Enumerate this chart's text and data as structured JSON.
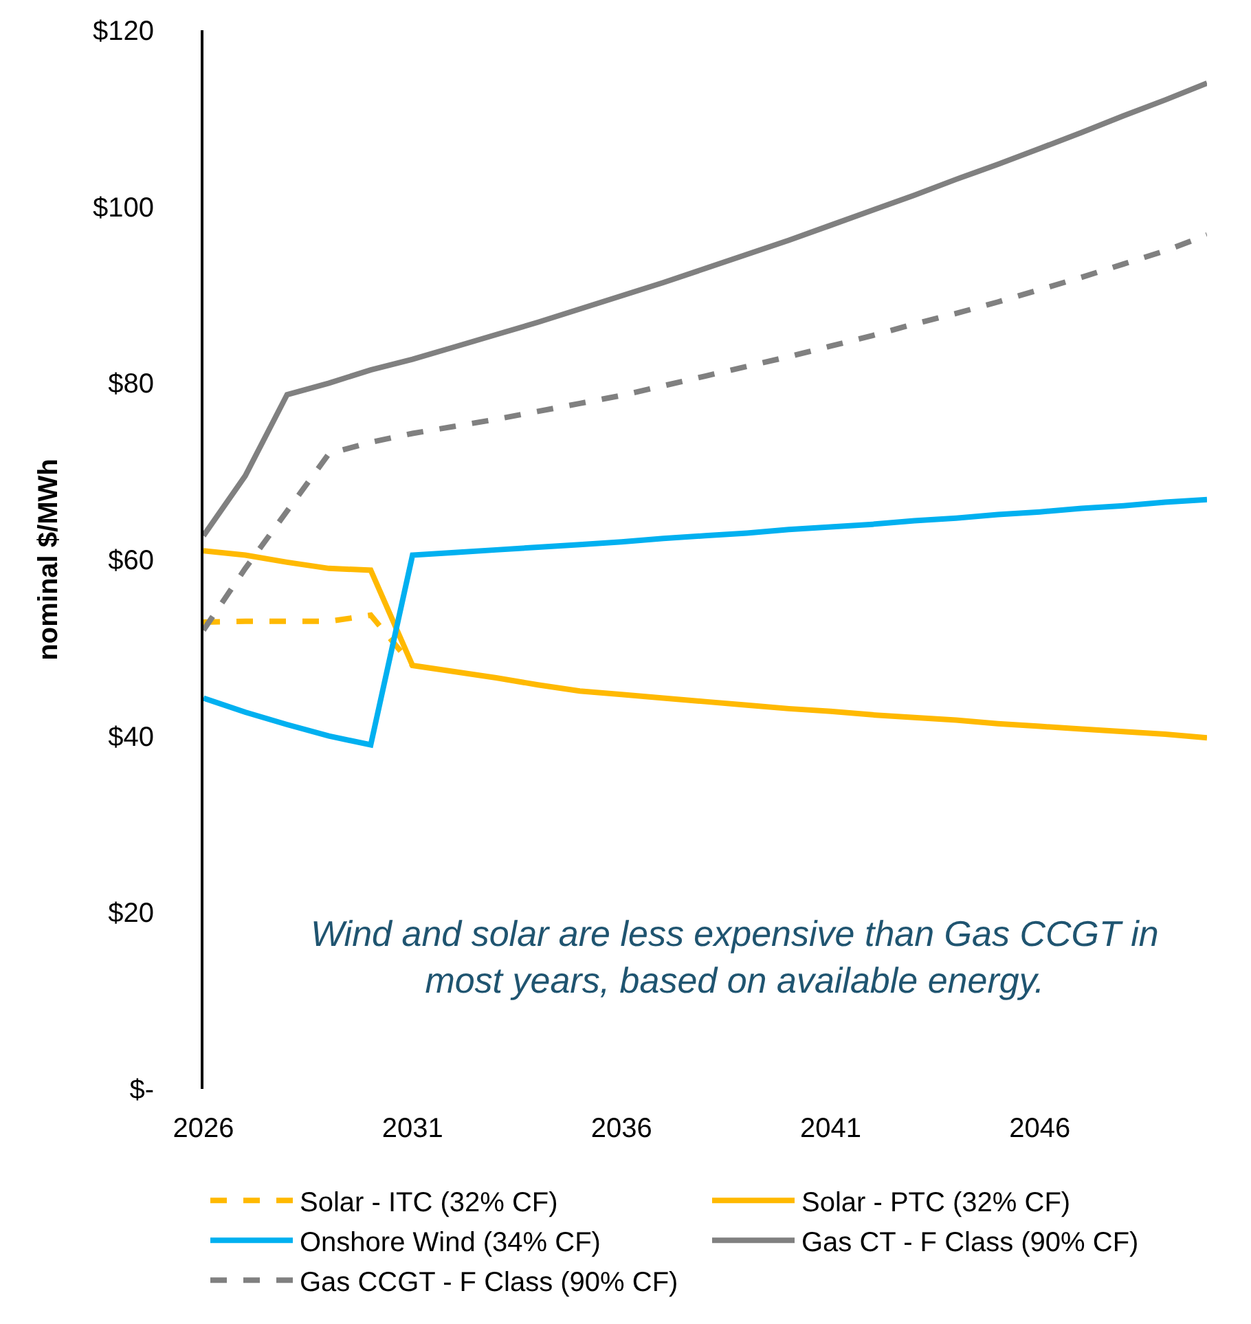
{
  "chart_data": {
    "type": "line",
    "ylabel": "nominal $/MWh",
    "categories": [
      "2026",
      null,
      null,
      null,
      null,
      "2031",
      null,
      null,
      null,
      null,
      "2036",
      null,
      null,
      null,
      null,
      "2041",
      null,
      null,
      null,
      null,
      "2046",
      null,
      null,
      null,
      null
    ],
    "series": [
      {
        "name": "Solar - ITC (32% CF)",
        "color": "#ffb900",
        "line_style": "dashed",
        "values": [
          52.9,
          53,
          53,
          53,
          53.7,
          48,
          null,
          null,
          null,
          null,
          null,
          null,
          null,
          null,
          null,
          null,
          null,
          null,
          null,
          null,
          null,
          null,
          null,
          null,
          null
        ]
      },
      {
        "name": "Solar - PTC (32% CF)",
        "color": "#ffb900",
        "line_style": "solid",
        "values": [
          61,
          60.5,
          59.7,
          59,
          58.8,
          48,
          47.3,
          46.6,
          45.8,
          45.1,
          44.7,
          44.3,
          43.9,
          43.5,
          43.1,
          42.8,
          42.4,
          42.1,
          41.8,
          41.4,
          41.1,
          40.8,
          40.5,
          40.2,
          39.8
        ]
      },
      {
        "name": "Onshore Wind (34% CF)",
        "color": "#00b0f0",
        "line_style": "solid",
        "values": [
          44.3,
          42.7,
          41.3,
          40,
          39,
          60.5,
          60.8,
          61.1,
          61.4,
          61.7,
          62,
          62.4,
          62.7,
          63,
          63.4,
          63.7,
          64,
          64.4,
          64.7,
          65.1,
          65.4,
          65.8,
          66.1,
          66.5,
          66.8
        ]
      },
      {
        "name": "Gas CT - F Class (90% CF)",
        "color": "#808080",
        "line_style": "solid",
        "values": [
          62.7,
          69.5,
          78.7,
          80,
          81.5,
          82.7,
          84.1,
          85.5,
          86.9,
          88.4,
          89.9,
          91.4,
          93,
          94.6,
          96.2,
          97.9,
          99.6,
          101.3,
          103.1,
          104.8,
          106.6,
          108.4,
          110.3,
          112.1,
          114
        ]
      },
      {
        "name": "Gas CCGT - F Class (90% CF)",
        "color": "#808080",
        "line_style": "dashed",
        "values": [
          52,
          59,
          65.5,
          72,
          73.3,
          74.3,
          75.1,
          75.9,
          76.8,
          77.7,
          78.6,
          79.7,
          80.8,
          81.9,
          83,
          84.2,
          85.4,
          86.7,
          87.9,
          89.2,
          90.6,
          92,
          93.5,
          95,
          96.8
        ]
      }
    ],
    "ylim": [
      0,
      120
    ],
    "yticks": [
      {
        "value": 0,
        "label": "$-"
      },
      {
        "value": 20,
        "label": "$20"
      },
      {
        "value": 40,
        "label": "$40"
      },
      {
        "value": 60,
        "label": "$60"
      },
      {
        "value": 80,
        "label": "$80"
      },
      {
        "value": 100,
        "label": "$100"
      },
      {
        "value": 120,
        "label": "$120"
      }
    ],
    "grid": false,
    "legend": "bottom",
    "marker": "none",
    "annotations": [
      "Wind and solar are less expensive than Gas CCGT in most years, based on available energy."
    ]
  }
}
